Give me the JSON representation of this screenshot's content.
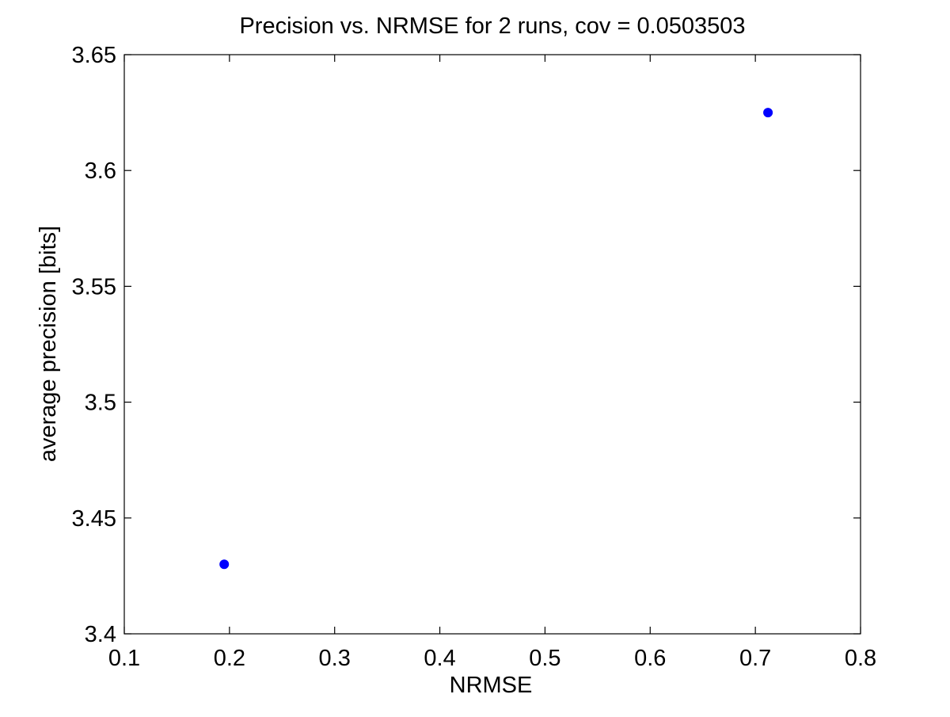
{
  "chart_data": {
    "type": "scatter",
    "title": "Precision vs. NRMSE for 2 runs, cov = 0.0503503",
    "xlabel": "NRMSE",
    "ylabel": "average precision [bits]",
    "xlim": [
      0.1,
      0.8
    ],
    "ylim": [
      3.4,
      3.65
    ],
    "xticks": [
      "0.1",
      "0.2",
      "0.3",
      "0.4",
      "0.5",
      "0.6",
      "0.7",
      "0.8"
    ],
    "yticks": [
      "3.4",
      "3.45",
      "3.5",
      "3.55",
      "3.6",
      "3.65"
    ],
    "grid": false,
    "series": [
      {
        "points": [
          {
            "x": 0.195,
            "y": 3.43
          },
          {
            "x": 0.712,
            "y": 3.625
          }
        ]
      }
    ]
  },
  "colors": {
    "marker": "#0000ff",
    "axes": "#000000",
    "background": "#ffffff"
  }
}
